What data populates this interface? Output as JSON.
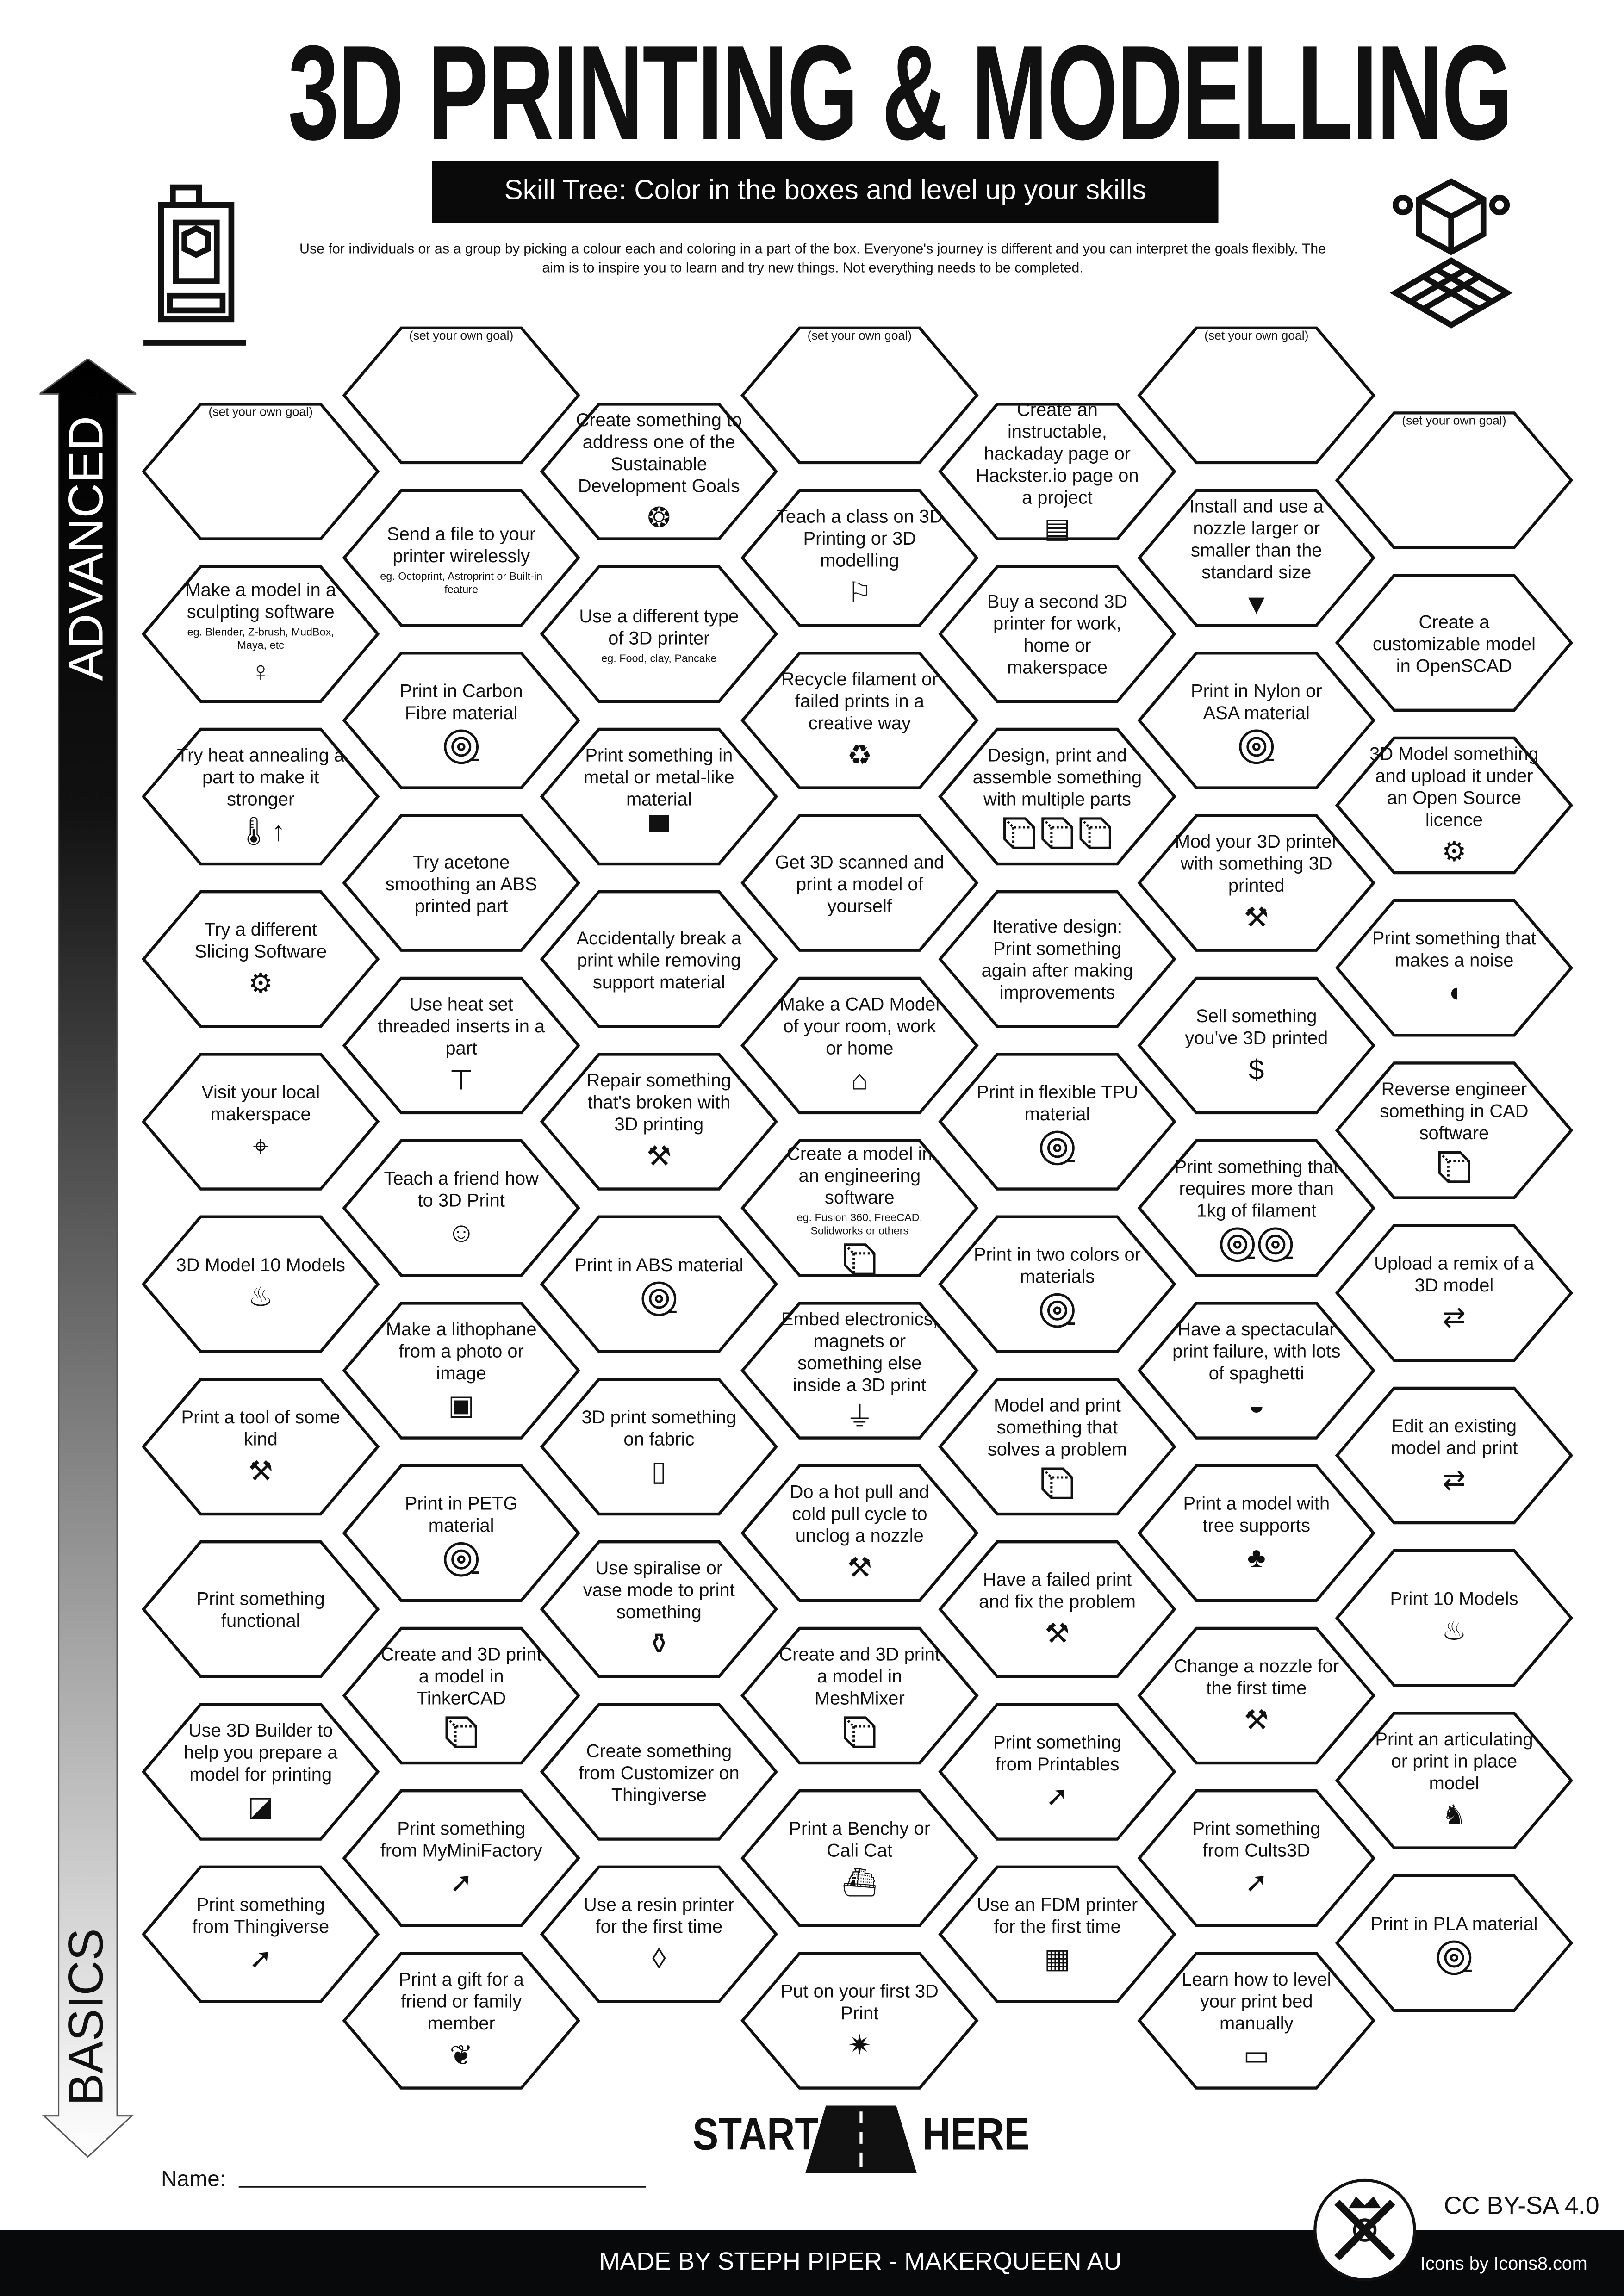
{
  "header": {
    "title": "3D PRINTING & MODELLING",
    "subtitle": "Skill Tree:  Color in the boxes and level up your skills",
    "description": "Use for individuals or as a group by picking a colour each and coloring in a part of the box.  Everyone's journey is different and you can interpret the goals flexibly.  The aim is to inspire you to learn and try new things. Not everything needs to be completed."
  },
  "axis": {
    "top_label": "ADVANCED",
    "bottom_label": "BASICS"
  },
  "columns": [
    [
      {
        "goal": "(set your own goal)"
      },
      {
        "t": "Make a model in a sculpting software",
        "s": "eg. Blender, Z-brush, MudBox, Maya, etc",
        "icon": "statue-icon"
      },
      {
        "t": "Try heat annealing a part to make it stronger",
        "icon": "thermometer-up-icon"
      },
      {
        "t": "Try a different Slicing Software",
        "icon": "laptop-gear-icon"
      },
      {
        "t": "Visit your local makerspace",
        "icon": "map-pin-icon"
      },
      {
        "t": "3D Model 10 Models",
        "icon": "cake-icon"
      },
      {
        "t": "Print a tool of some kind",
        "icon": "tools-icon"
      },
      {
        "t": "Print something functional"
      },
      {
        "t": "Use 3D Builder to help you prepare a model for printing",
        "icon": "3d-builder-icon"
      },
      {
        "t": "Print something from Thingiverse",
        "icon": "cursor-click-icon"
      }
    ],
    [
      {
        "goal": "(set your own goal)"
      },
      {
        "t": "Send a file to your printer wirelessly",
        "s": "eg. Octoprint, Astroprint or Built-in feature"
      },
      {
        "t": "Print in Carbon Fibre material",
        "icon": "filament-spool-icon"
      },
      {
        "t": "Try acetone smoothing an ABS printed part"
      },
      {
        "t": "Use heat set threaded inserts in a part",
        "icon": "screw-icon"
      },
      {
        "t": "Teach a friend how to 3D Print",
        "icon": "teacher-student-icon"
      },
      {
        "t": "Make a lithophane from a photo or image",
        "icon": "picture-icon"
      },
      {
        "t": "Print in PETG material",
        "icon": "filament-spool-icon"
      },
      {
        "t": "Create and 3D print a model in TinkerCAD",
        "icon": "cube-icon"
      },
      {
        "t": "Print something from MyMiniFactory",
        "icon": "cursor-click-icon"
      },
      {
        "t": "Print a gift for a friend or family member",
        "icon": "gift-bow-icon"
      }
    ],
    [
      {
        "t": "Create something to address one of the Sustainable Development Goals",
        "icon": "sdg-wheel-icon"
      },
      {
        "t": "Use a different type of 3D printer",
        "s": "eg. Food, clay, Pancake"
      },
      {
        "t": "Print something in metal or metal-like material",
        "icon": "anvil-icon"
      },
      {
        "t": "Accidentally break a print while removing support material"
      },
      {
        "t": "Repair something that's broken with 3D printing",
        "icon": "tools-icon"
      },
      {
        "t": "Print in ABS material",
        "icon": "filament-spool-icon"
      },
      {
        "t": "3D print something on fabric",
        "icon": "fabric-icon"
      },
      {
        "t": "Use spiralise or vase mode to print something",
        "icon": "vase-icon"
      },
      {
        "t": "Create something from Customizer on Thingiverse"
      },
      {
        "t": "Use a resin printer for the first time",
        "icon": "drop-icon"
      }
    ],
    [
      {
        "goal": "(set your own goal)"
      },
      {
        "t": "Teach a class on 3D Printing or 3D modelling",
        "icon": "teacher-board-icon"
      },
      {
        "t": "Recycle filament or failed prints in a creative way",
        "icon": "recycle-icon"
      },
      {
        "t": "Get 3D scanned and print a model of yourself"
      },
      {
        "t": "Make a CAD Model of your room, work or home",
        "icon": "house-icon"
      },
      {
        "t": "Create a model in an engineering software",
        "s": "eg. Fusion 360, FreeCAD, Solidworks or others",
        "icon": "cube-icon"
      },
      {
        "t": "Embed electronics, magnets or something else inside a 3D print",
        "icon": "led-icon"
      },
      {
        "t": "Do a hot pull and cold pull cycle to unclog a nozzle",
        "icon": "tools-icon"
      },
      {
        "t": "Create and 3D print a model in MeshMixer",
        "icon": "cube-icon"
      },
      {
        "t": "Print a Benchy or Cali Cat",
        "icon": "benchy-boat-icon"
      },
      {
        "t": "Put on your first 3D Print",
        "icon": "party-popper-icon"
      }
    ],
    [
      {
        "t": "Create an instructable, hackaday page or Hackster.io page on a project",
        "icon": "document-icon"
      },
      {
        "t": "Buy a second 3D printer for work, home or makerspace"
      },
      {
        "t": "Design, print and assemble something with multiple parts",
        "icon": "cubes-icon"
      },
      {
        "t": "Iterative design: Print something again after making improvements"
      },
      {
        "t": "Print in flexible TPU material",
        "icon": "filament-spool-icon"
      },
      {
        "t": "Print in two colors or materials",
        "icon": "filament-spool-icon"
      },
      {
        "t": "Model and print something that solves a problem",
        "icon": "cube-icon"
      },
      {
        "t": "Have a failed print and fix the problem",
        "icon": "tools-icon"
      },
      {
        "t": "Print something from Printables",
        "icon": "cursor-click-icon"
      },
      {
        "t": "Use an FDM printer for the first time",
        "icon": "3d-printer-icon"
      }
    ],
    [
      {
        "goal": "(set your own goal)"
      },
      {
        "t": "Install and use a nozzle larger or smaller than the standard size",
        "icon": "nozzle-icon"
      },
      {
        "t": "Print in Nylon or ASA material",
        "icon": "filament-spool-icon"
      },
      {
        "t": "Mod your 3D printer with something 3D printed",
        "icon": "tools-icon"
      },
      {
        "t": "Sell something you've 3D printed",
        "icon": "money-bag-icon"
      },
      {
        "t": "Print something that requires more than 1kg of filament",
        "icon": "filament-spools-icon"
      },
      {
        "t": "Have a spectacular print failure, with lots of spaghetti",
        "icon": "spaghetti-icon"
      },
      {
        "t": "Print a model with tree supports",
        "icon": "tree-icon"
      },
      {
        "t": "Change a nozzle for the first time",
        "icon": "tools-icon"
      },
      {
        "t": "Print something from Cults3D",
        "icon": "cursor-click-icon"
      },
      {
        "t": "Learn how to level your print bed manually",
        "icon": "ruler-icon"
      }
    ],
    [
      {
        "goal": "(set your own goal)"
      },
      {
        "t": "Create a customizable model in OpenSCAD"
      },
      {
        "t": "3D Model something and upload it under an Open Source licence",
        "icon": "gear-icon"
      },
      {
        "t": "Print something that makes a noise",
        "icon": "whistle-icon"
      },
      {
        "t": "Reverse engineer something in CAD software",
        "icon": "cube-icon"
      },
      {
        "t": "Upload a remix of a 3D model",
        "icon": "remix-arrows-icon"
      },
      {
        "t": "Edit an existing model and print",
        "icon": "remix-arrows-icon"
      },
      {
        "t": "Print 10 Models",
        "icon": "cake-icon"
      },
      {
        "t": "Print an articulating or print in place model",
        "icon": "dragon-icon"
      },
      {
        "t": "Print in PLA material",
        "icon": "filament-spool-icon"
      }
    ]
  ],
  "start": {
    "left": "START",
    "right": "HERE"
  },
  "name_label": "Name:",
  "license": "CC BY-SA 4.0",
  "footer": {
    "credit": "MADE BY STEPH PIPER  -  MAKERQUEEN AU",
    "icons_credit": "Icons by Icons8.com"
  },
  "colors": {
    "ink": "#111111",
    "footer_bg": "#08090b",
    "paper": "#ffffff"
  }
}
